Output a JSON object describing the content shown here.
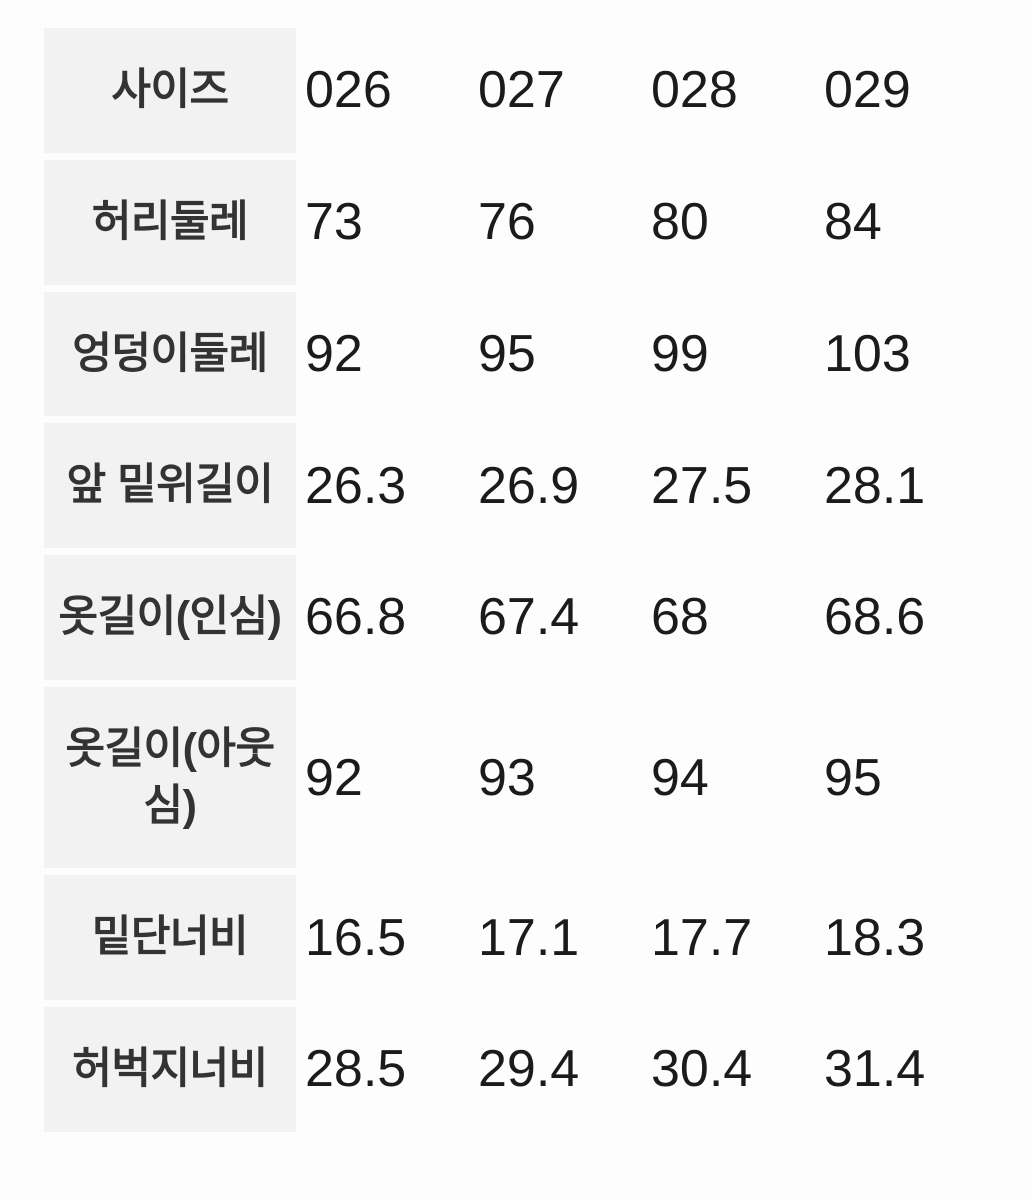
{
  "table": {
    "description_label": "size-chart",
    "rows": [
      {
        "label": "사이즈",
        "values": [
          "026",
          "027",
          "028",
          "029"
        ]
      },
      {
        "label": "허리둘레",
        "values": [
          "73",
          "76",
          "80",
          "84"
        ]
      },
      {
        "label": "엉덩이둘레",
        "values": [
          "92",
          "95",
          "99",
          "103"
        ]
      },
      {
        "label": "앞 밑위길이",
        "values": [
          "26.3",
          "26.9",
          "27.5",
          "28.1"
        ]
      },
      {
        "label": "옷길이(인심)",
        "values": [
          "66.8",
          "67.4",
          "68",
          "68.6"
        ]
      },
      {
        "label": "옷길이(아웃심)",
        "values": [
          "92",
          "93",
          "94",
          "95"
        ]
      },
      {
        "label": "밑단너비",
        "values": [
          "16.5",
          "17.1",
          "17.7",
          "18.3"
        ]
      },
      {
        "label": "허벅지너비",
        "values": [
          "28.5",
          "29.4",
          "30.4",
          "31.4"
        ]
      }
    ],
    "colors": {
      "label_cell_bg": "#f2f2f2",
      "label_text": "#333333",
      "value_text": "#1b1b1b",
      "page_bg": "#fdfdfd"
    }
  }
}
